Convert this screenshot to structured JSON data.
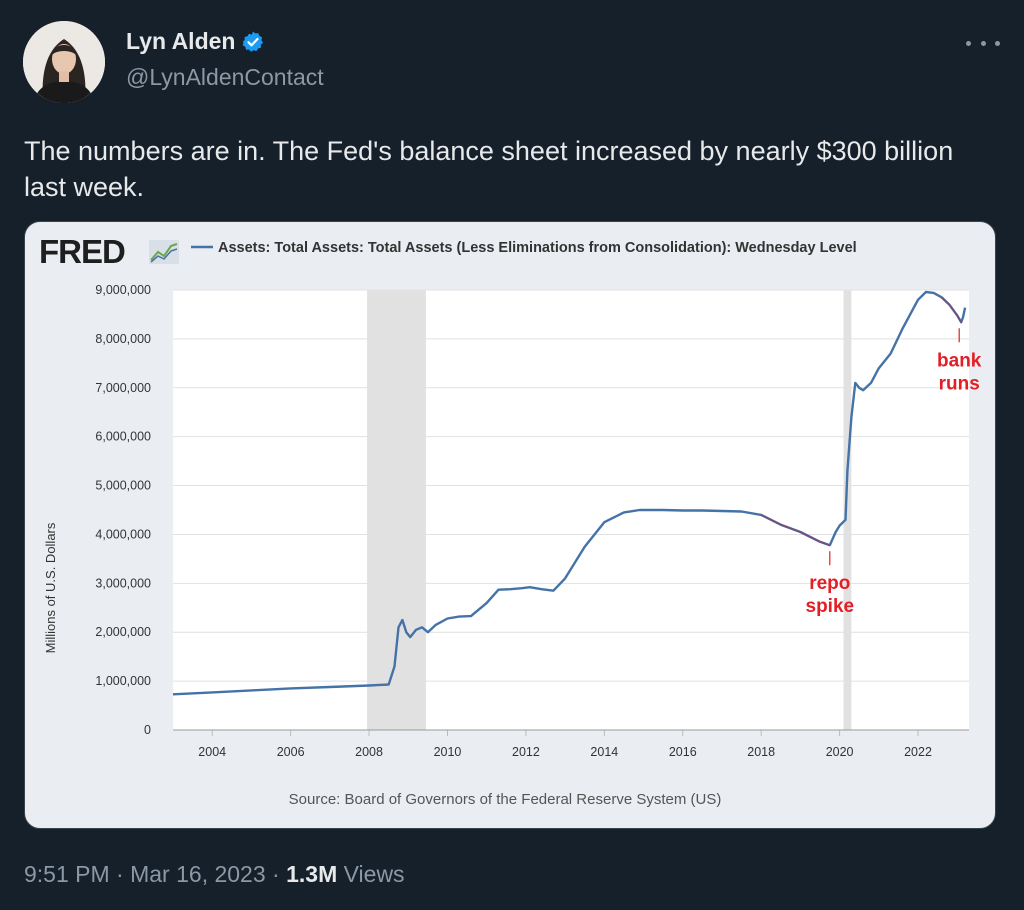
{
  "author": {
    "display_name": "Lyn Alden",
    "handle": "@LynAldenContact",
    "verified_color": "#1d9bf0"
  },
  "tweet": {
    "text": "The numbers are in. The Fed's balance sheet increased by nearly $300 billion last week."
  },
  "footer": {
    "time": "9:51 PM",
    "sep1": " · ",
    "date": "Mar 16, 2023",
    "sep2": " · ",
    "views_count": "1.3M",
    "views_label": " Views"
  },
  "chart_data": {
    "type": "line",
    "logo": "FRED",
    "legend_label": "Assets: Total Assets: Total Assets (Less Eliminations from Consolidation): Wednesday Level",
    "ylabel": "Millions of U.S. Dollars",
    "source": "Source: Board of Governors of the Federal Reserve System (US)",
    "xlim": [
      2003.0,
      2023.3
    ],
    "ylim": [
      0,
      9000000
    ],
    "x_ticks": [
      "2004",
      "2006",
      "2008",
      "2010",
      "2012",
      "2014",
      "2016",
      "2018",
      "2020",
      "2022"
    ],
    "y_ticks": [
      "0",
      "1,000,000",
      "2,000,000",
      "3,000,000",
      "4,000,000",
      "5,000,000",
      "6,000,000",
      "7,000,000",
      "8,000,000",
      "9,000,000"
    ],
    "recessions": [
      [
        2007.95,
        2009.45
      ],
      [
        2020.1,
        2020.3
      ]
    ],
    "series": [
      {
        "x": [
          2003.0,
          2004.0,
          2005.0,
          2006.0,
          2007.0,
          2008.0,
          2008.5,
          2008.65,
          2008.75,
          2008.85,
          2008.95,
          2009.05,
          2009.2,
          2009.35,
          2009.5,
          2009.7,
          2010.0,
          2010.3,
          2010.6,
          2011.0,
          2011.3,
          2011.6,
          2011.9,
          2012.1,
          2012.4,
          2012.7,
          2013.0,
          2013.5,
          2014.0,
          2014.5,
          2014.9,
          2015.5,
          2016.0,
          2016.5,
          2017.0,
          2017.5,
          2018.0,
          2018.5,
          2019.0,
          2019.5,
          2019.75,
          2019.9,
          2020.0,
          2020.15,
          2020.2,
          2020.3,
          2020.4,
          2020.5,
          2020.6,
          2020.8,
          2021.0,
          2021.3,
          2021.6,
          2021.9,
          2022.0,
          2022.2,
          2022.4,
          2022.6,
          2022.8,
          2023.0,
          2023.1,
          2023.15,
          2023.2
        ],
        "y": [
          730000,
          770000,
          810000,
          850000,
          880000,
          910000,
          930000,
          1300000,
          2100000,
          2250000,
          2000000,
          1900000,
          2050000,
          2100000,
          2000000,
          2150000,
          2280000,
          2320000,
          2330000,
          2600000,
          2870000,
          2880000,
          2900000,
          2920000,
          2880000,
          2850000,
          3100000,
          3750000,
          4250000,
          4450000,
          4500000,
          4500000,
          4490000,
          4490000,
          4480000,
          4470000,
          4400000,
          4200000,
          4050000,
          3850000,
          3780000,
          4050000,
          4180000,
          4300000,
          5300000,
          6400000,
          7100000,
          7000000,
          6950000,
          7100000,
          7400000,
          7700000,
          8200000,
          8650000,
          8800000,
          8960000,
          8940000,
          8850000,
          8700000,
          8480000,
          8340000,
          8450000,
          8640000
        ]
      }
    ],
    "annotations": [
      {
        "text": "repo",
        "text2": "spike",
        "x": 2019.75,
        "y": 3780000
      },
      {
        "text": "bank",
        "text2": "runs",
        "x": 2023.05,
        "y": 8340000
      }
    ],
    "colors": {
      "line": "#4572a7",
      "highlight": "#8d3b6a",
      "annotation": "#e21f26",
      "recession": "#e1e1e1",
      "grid": "#e1e1e1",
      "plot_bg": "#ffffff",
      "card_bg": "#eaeef3",
      "logo": "#1f1f1f"
    }
  }
}
